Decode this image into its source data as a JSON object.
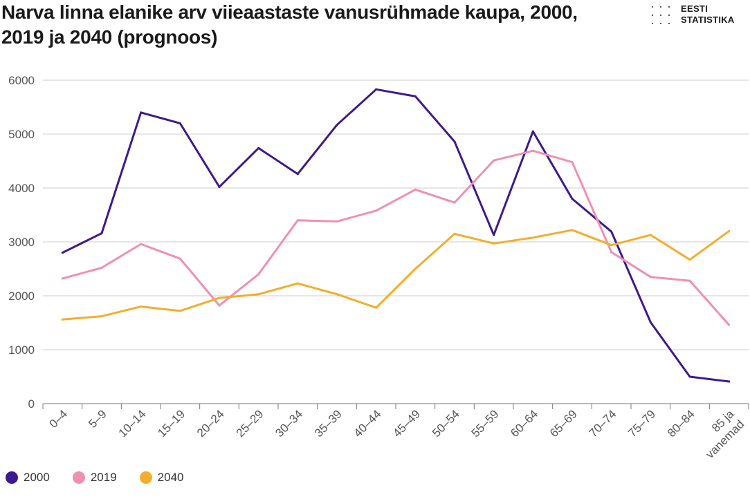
{
  "chart_data": {
    "type": "line",
    "title": "Narva linna elanike arv viieaastaste vanusrühmade kaupa, 2000, 2019 ja 2040 (prognoos)",
    "categories": [
      "0–4",
      "5–9",
      "10–14",
      "15–19",
      "20–24",
      "25–29",
      "30–34",
      "35–39",
      "40–44",
      "45–49",
      "50–54",
      "55–59",
      "60–64",
      "65–69",
      "70–74",
      "75–79",
      "80–84",
      "85 ja vanemad"
    ],
    "ylim": [
      0,
      6000
    ],
    "yticks": [
      "0",
      "1000",
      "2000",
      "3000",
      "4000",
      "5000",
      "6000"
    ],
    "grid": "horizontal",
    "legend_position": "bottom-left",
    "series": [
      {
        "name": "2000",
        "color": "#3d1a8c",
        "values": [
          2800,
          3160,
          5400,
          5200,
          4020,
          4740,
          4260,
          5170,
          5830,
          5700,
          4860,
          3130,
          5050,
          3800,
          3190,
          1510,
          500,
          410
        ]
      },
      {
        "name": "2019",
        "color": "#f08fb2",
        "values": [
          2320,
          2520,
          2960,
          2690,
          1820,
          2400,
          3400,
          3380,
          3580,
          3970,
          3730,
          4510,
          4690,
          4480,
          2810,
          2350,
          2280,
          1460
        ]
      },
      {
        "name": "2040",
        "color": "#f2ae2c",
        "values": [
          1560,
          1620,
          1800,
          1720,
          1960,
          2030,
          2230,
          2030,
          1780,
          2500,
          3150,
          2970,
          3080,
          3220,
          2940,
          3130,
          2670,
          3200
        ]
      }
    ]
  },
  "logo": {
    "line1": "EESTI",
    "line2": "STATISTIKA"
  },
  "colors": {
    "text": "#1a1a1a",
    "axis": "#555555",
    "grid": "#cccccc"
  }
}
